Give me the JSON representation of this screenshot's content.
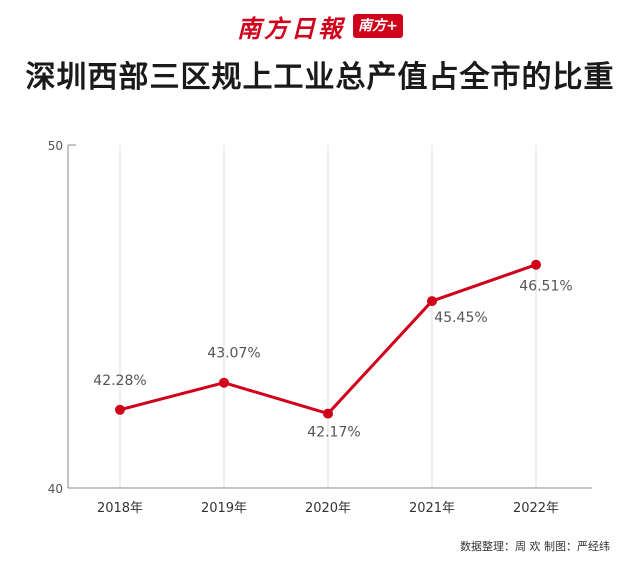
{
  "brand": {
    "name": "南方日報",
    "badge": "南方+"
  },
  "title": "深圳西部三区规上工业总产值占全市的比重",
  "credit": "数据整理：周 欢 制图：严经纬",
  "colors": {
    "accent": "#d0021b",
    "grid": "#dddddd",
    "axis": "#888888",
    "label": "#555555"
  },
  "chart_data": {
    "type": "line",
    "title": "深圳西部三区规上工业总产值占全市的比重",
    "xlabel": "",
    "ylabel": "",
    "categories": [
      "2018年",
      "2019年",
      "2020年",
      "2021年",
      "2022年"
    ],
    "series": [
      {
        "values": [
          42.28,
          43.07,
          42.17,
          45.45,
          46.51
        ]
      }
    ],
    "data_labels": [
      "42.28%",
      "43.07%",
      "42.17%",
      "45.45%",
      "46.51%"
    ],
    "ylim": [
      40,
      50
    ],
    "yticks": [
      "40",
      "50"
    ],
    "grid": "vertical",
    "legend": "none"
  }
}
